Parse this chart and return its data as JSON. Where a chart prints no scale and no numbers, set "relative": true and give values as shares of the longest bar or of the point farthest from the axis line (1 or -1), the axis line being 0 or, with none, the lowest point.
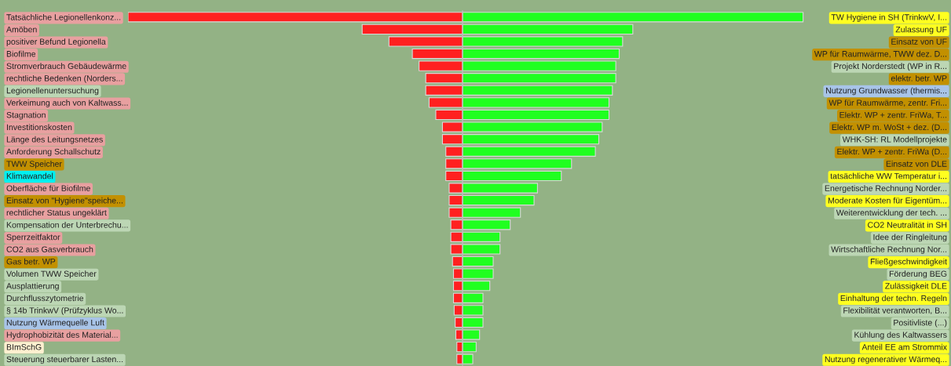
{
  "chart_data": [
    {
      "type": "bar",
      "orientation": "horizontal",
      "relative": true,
      "tick_labels": "y",
      "categories": [
        "Tatsächliche Legionellenkonz...",
        "Amöben",
        "positiver Befund Legionella",
        "Biofilme",
        "Stromverbrauch Gebäudewärme",
        "rechtliche Bedenken (Norders...",
        "Legionellenuntersuchung",
        "Verkeimung auch von Kaltwass...",
        "Stagnation",
        "Investitionskosten",
        "Länge des Leitungsnetzes",
        "Anforderung Schallschutz",
        "TWW Speicher",
        "Klimawandel",
        "Oberfläche für Biofilme",
        "Einsatz von \"Hygiene\"speiche...",
        "rechtlicher Status ungeklärt",
        "Kompensation der Unterbrechu...",
        "Sperrzeitfaktor",
        "CO2 aus Gasverbrauch",
        "Gas betr. WP",
        "Volumen TWW Speicher",
        "Ausplattierung",
        "Durchflusszytometrie",
        "§ 14b TrinkwV (Prüfzyklus Wo...",
        "Nutzung Wärmequelle Luft",
        "Hydrophobizität des Material...",
        "BImSchG",
        "Steuerung steuerbarer Lasten..."
      ],
      "series": [
        {
          "color": "#ff2020",
          "values": [
            -1,
            -0.3,
            -0.22,
            -0.15,
            -0.13,
            -0.11,
            -0.11,
            -0.1,
            -0.08,
            -0.06,
            -0.06,
            -0.05,
            -0.05,
            -0.05,
            -0.04,
            -0.04,
            -0.04,
            -0.035,
            -0.035,
            -0.035,
            -0.03,
            -0.027,
            -0.027,
            -0.027,
            -0.025,
            -0.022,
            -0.02,
            -0.017,
            -0.017
          ]
        }
      ]
    },
    {
      "type": "bar",
      "orientation": "horizontal",
      "relative": true,
      "tick_labels": "y",
      "categories": [
        "TW Hygiene in SH (TrinkwV, I...",
        "Zulassung UF",
        "Einsatz von UF",
        "WP für Raumwärme, TWW dez. D...",
        "Projekt Norderstedt (WP in R...",
        "elektr. betr. WP",
        "Nutzung Grundwasser (thermis...",
        "WP für Raumwärme, zentr. Fri...",
        "Elektr. WP + zentr. FriWa, T...",
        "Elektr. WP m. WoSt + dez. (D...",
        "WHK-SH: RL Modellprojekte",
        "Elektr. WP + zentr. FriWa (D...",
        "Einsatz von DLE",
        "tatsächliche WW Temperatur i...",
        "Energetische Rechnung Norder...",
        "Moderate Kosten für Eigentüm...",
        "Weiterentwicklung der tech. ...",
        "CO2 Neutralität in SH",
        "Idee der Ringleitung",
        "Wirtschaftliche Rechnung Nor...",
        "Fließgeschwindigkeit",
        "Förderung BEG",
        "Zulässigkeit DLE",
        "Einhaltung der techn. Regeln",
        "Flexibilität verantworten, B...",
        "Positivliste (...)",
        "Kühlung des Kaltwassers",
        "Anteil EE am Strommix",
        "Nutzung regenerativer Wärmeq..."
      ],
      "series": [
        {
          "color": "#20ff20",
          "values": [
            1,
            0.5,
            0.47,
            0.46,
            0.45,
            0.45,
            0.44,
            0.43,
            0.43,
            0.41,
            0.4,
            0.39,
            0.32,
            0.29,
            0.22,
            0.21,
            0.17,
            0.14,
            0.11,
            0.11,
            0.09,
            0.09,
            0.08,
            0.06,
            0.06,
            0.06,
            0.05,
            0.04,
            0.03
          ]
        }
      ]
    }
  ]
}
